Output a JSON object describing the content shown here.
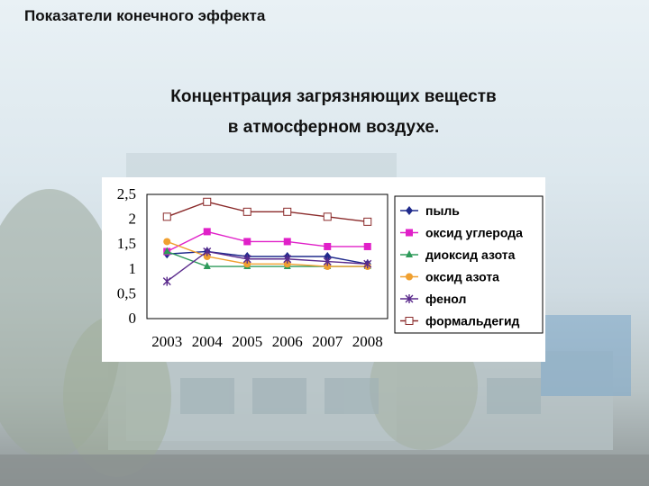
{
  "slide": {
    "heading": "Показатели конечного эффекта",
    "subtitle_line1": "Концентрация загрязняющих веществ",
    "subtitle_line2": "в атмосферном воздухе."
  },
  "chart_data": {
    "type": "line",
    "title": "",
    "xlabel": "",
    "ylabel": "",
    "x": [
      "2003",
      "2004",
      "2005",
      "2006",
      "2007",
      "2008"
    ],
    "yticks": [
      "0",
      "0,5",
      "1",
      "1,5",
      "2",
      "2,5"
    ],
    "ylim": [
      0,
      2.5
    ],
    "grid": false,
    "legend": "right",
    "series": [
      {
        "name": "пыль",
        "color": "#1f2a8c",
        "marker": "diamond",
        "values": [
          1.3,
          1.35,
          1.25,
          1.25,
          1.25,
          1.1
        ]
      },
      {
        "name": "оксид углерода",
        "color": "#e020c8",
        "marker": "square",
        "values": [
          1.35,
          1.75,
          1.55,
          1.55,
          1.45,
          1.45
        ]
      },
      {
        "name": "диоксид азота",
        "color": "#2e9a5a",
        "marker": "triangle",
        "values": [
          1.35,
          1.05,
          1.05,
          1.05,
          1.05,
          1.05
        ]
      },
      {
        "name": "оксид азота",
        "color": "#f0a030",
        "marker": "circle",
        "values": [
          1.55,
          1.25,
          1.1,
          1.1,
          1.05,
          1.05
        ]
      },
      {
        "name": "фенол",
        "color": "#5a2a8c",
        "marker": "star",
        "values": [
          0.75,
          1.35,
          1.2,
          1.2,
          1.15,
          1.1
        ]
      },
      {
        "name": "формальдегид",
        "color": "#8a2a2a",
        "marker": "open-square",
        "values": [
          2.05,
          2.35,
          2.15,
          2.15,
          2.05,
          1.95
        ]
      }
    ]
  }
}
